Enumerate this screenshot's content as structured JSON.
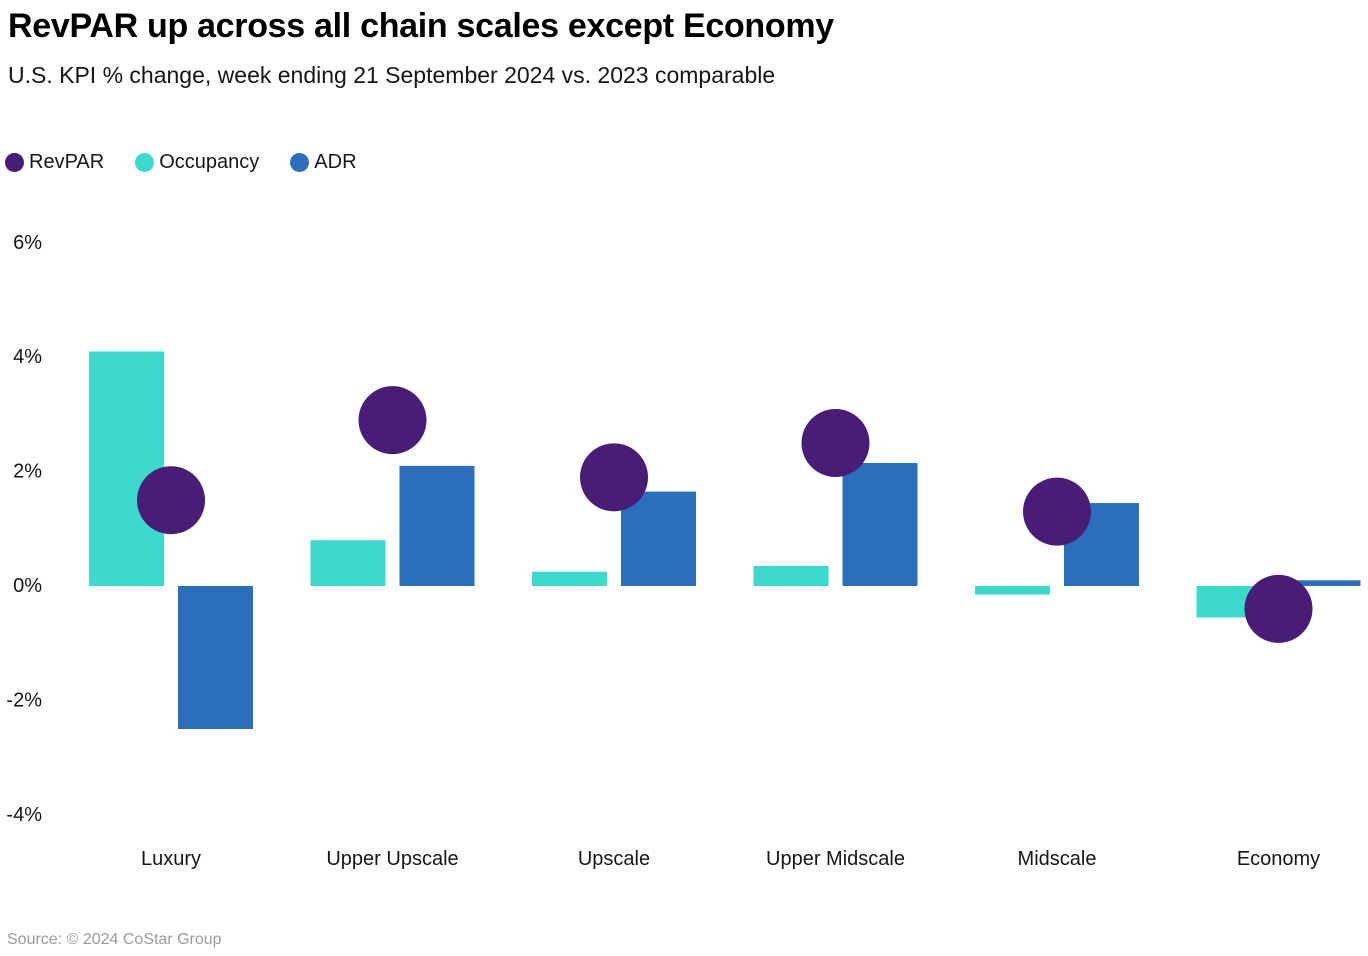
{
  "page": {
    "title": "RevPAR up across all chain scales except Economy",
    "subtitle": "U.S. KPI % change, week ending 21 September 2024 vs. 2023 comparable",
    "source": "Source: © 2024 CoStar Group"
  },
  "colors": {
    "revpar": "#471D75",
    "occupancy": "#3CD9CF",
    "adr": "#2B6EBE",
    "text": "#161616",
    "muted": "#9A9A9A"
  },
  "legend": [
    {
      "label": "RevPAR",
      "series": "revpar"
    },
    {
      "label": "Occupancy",
      "series": "occupancy"
    },
    {
      "label": "ADR",
      "series": "adr"
    }
  ],
  "chart_data": {
    "type": "bar",
    "subtype": "grouped bars (Occupancy, ADR) with circular point markers (RevPAR)",
    "unit": "percent change",
    "title": "RevPAR up across all chain scales except Economy",
    "subtitle": "U.S. KPI % change, week ending 21 September 2024 vs. 2023 comparable",
    "categories": [
      "Luxury",
      "Upper Upscale",
      "Upscale",
      "Upper Midscale",
      "Midscale",
      "Economy"
    ],
    "series": [
      {
        "name": "RevPAR",
        "mark": "point",
        "color_key": "revpar",
        "values": [
          1.5,
          2.9,
          1.9,
          2.5,
          1.3,
          -0.4
        ]
      },
      {
        "name": "Occupancy",
        "mark": "bar",
        "color_key": "occupancy",
        "values": [
          4.1,
          0.8,
          0.25,
          0.35,
          -0.15,
          -0.55
        ]
      },
      {
        "name": "ADR",
        "mark": "bar",
        "color_key": "adr",
        "values": [
          -2.5,
          2.1,
          1.65,
          2.15,
          1.45,
          0.1
        ]
      }
    ],
    "yticks": [
      {
        "value": 6,
        "label": "6%"
      },
      {
        "value": 4,
        "label": "4%"
      },
      {
        "value": 2,
        "label": "2%"
      },
      {
        "value": 0,
        "label": "0%"
      },
      {
        "value": -2,
        "label": "-2%"
      },
      {
        "value": -4,
        "label": "-4%"
      }
    ],
    "ylim": [
      -4.5,
      6.5
    ],
    "xlabel": "",
    "ylabel": "",
    "grid": false,
    "legend_position": "top-left"
  }
}
